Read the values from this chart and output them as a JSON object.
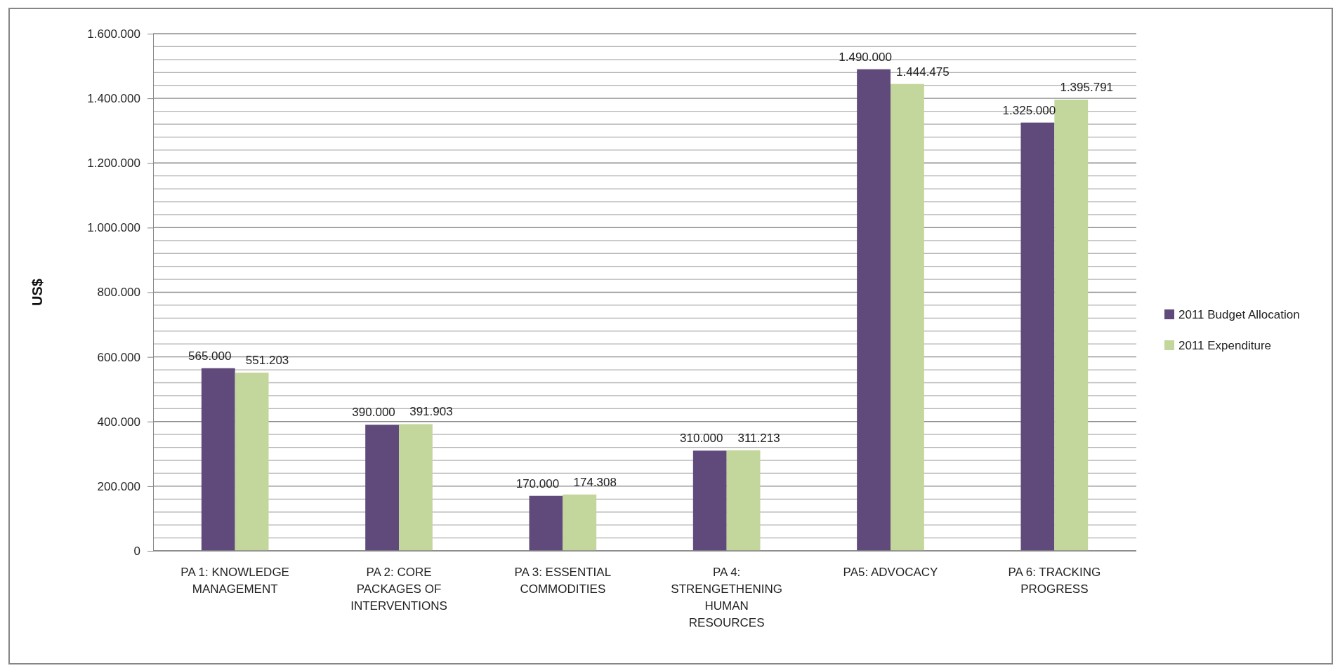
{
  "chart_data": {
    "type": "bar",
    "ylabel": "US$",
    "categories": [
      "PA 1: KNOWLEDGE MANAGEMENT",
      "PA 2: CORE PACKAGES OF INTERVENTIONS",
      "PA 3: ESSENTIAL COMMODITIES",
      "PA 4: STRENGETHENING HUMAN RESOURCES",
      "PA5: ADVOCACY",
      "PA 6: TRACKING PROGRESS"
    ],
    "series": [
      {
        "name": "2011 Budget Allocation",
        "color": "#604a7b",
        "values": [
          565000,
          390000,
          170000,
          310000,
          1490000,
          1325000
        ],
        "value_labels": [
          "565.000",
          "390.000",
          "170.000",
          "310.000",
          "1.490.000",
          "1.325.000"
        ]
      },
      {
        "name": "2011 Expenditure",
        "color": "#c3d69b",
        "values": [
          551203,
          391903,
          174308,
          311213,
          1444475,
          1395791
        ],
        "value_labels": [
          "551.203",
          "391.903",
          "174.308",
          "311.213",
          "1.444.475",
          "1.395.791"
        ]
      }
    ],
    "ylim": [
      0,
      1600000
    ],
    "yticks": [
      {
        "value": 0,
        "label": "0"
      },
      {
        "value": 40000,
        "label": null
      },
      {
        "value": 80000,
        "label": null
      },
      {
        "value": 120000,
        "label": null
      },
      {
        "value": 160000,
        "label": null
      },
      {
        "value": 200000,
        "label": "200.000"
      },
      {
        "value": 240000,
        "label": null
      },
      {
        "value": 280000,
        "label": null
      },
      {
        "value": 320000,
        "label": null
      },
      {
        "value": 360000,
        "label": null
      },
      {
        "value": 400000,
        "label": "400.000"
      },
      {
        "value": 440000,
        "label": null
      },
      {
        "value": 480000,
        "label": null
      },
      {
        "value": 520000,
        "label": null
      },
      {
        "value": 560000,
        "label": null
      },
      {
        "value": 600000,
        "label": "600.000"
      },
      {
        "value": 640000,
        "label": null
      },
      {
        "value": 680000,
        "label": null
      },
      {
        "value": 720000,
        "label": null
      },
      {
        "value": 760000,
        "label": null
      },
      {
        "value": 800000,
        "label": "800.000"
      },
      {
        "value": 840000,
        "label": null
      },
      {
        "value": 880000,
        "label": null
      },
      {
        "value": 920000,
        "label": null
      },
      {
        "value": 960000,
        "label": null
      },
      {
        "value": 1000000,
        "label": "1.000.000"
      },
      {
        "value": 1040000,
        "label": null
      },
      {
        "value": 1080000,
        "label": null
      },
      {
        "value": 1120000,
        "label": null
      },
      {
        "value": 1160000,
        "label": null
      },
      {
        "value": 1200000,
        "label": "1.200.000"
      },
      {
        "value": 1240000,
        "label": null
      },
      {
        "value": 1280000,
        "label": null
      },
      {
        "value": 1320000,
        "label": null
      },
      {
        "value": 1360000,
        "label": null
      },
      {
        "value": 1400000,
        "label": "1.400.000"
      },
      {
        "value": 1440000,
        "label": null
      },
      {
        "value": 1480000,
        "label": null
      },
      {
        "value": 1520000,
        "label": null
      },
      {
        "value": 1560000,
        "label": null
      },
      {
        "value": 1600000,
        "label": "1.600.000"
      }
    ],
    "grid": true,
    "legend": "right"
  }
}
